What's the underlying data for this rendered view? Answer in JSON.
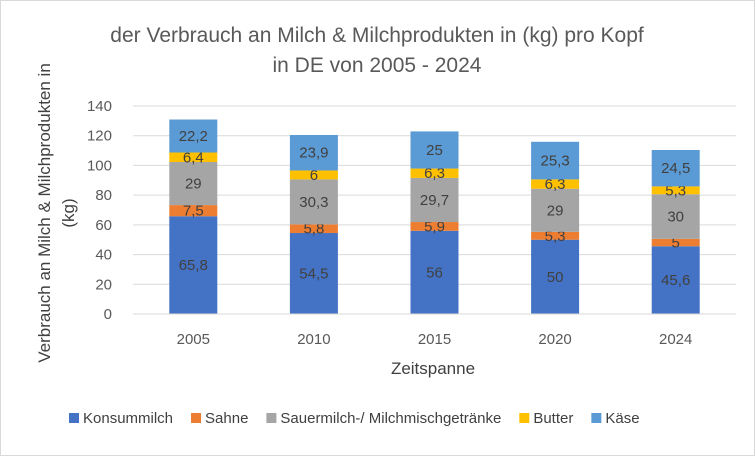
{
  "chart_data": {
    "type": "bar",
    "stacked": true,
    "title_line1": "der Verbrauch an Milch & Milchprodukten in (kg) pro Kopf",
    "title_line2": "in DE von 2005 - 2024",
    "xlabel": "Zeitspanne",
    "ylabel_line1": "Verbrauch an Milch & Milchprodukten in",
    "ylabel_line2": "(kg)",
    "categories": [
      "2005",
      "2010",
      "2015",
      "2020",
      "2024"
    ],
    "ylim": [
      0,
      140
    ],
    "yticks": [
      0,
      20,
      40,
      60,
      80,
      100,
      120,
      140
    ],
    "grid": true,
    "legend_position": "bottom",
    "series": [
      {
        "name": "Konsummilch",
        "color": "#4472C4",
        "values": [
          65.8,
          54.5,
          56,
          50,
          45.6
        ],
        "labels": [
          "65,8",
          "54,5",
          "56",
          "50",
          "45,6"
        ]
      },
      {
        "name": "Sahne",
        "color": "#ED7D31",
        "values": [
          7.5,
          5.8,
          5.9,
          5.3,
          5
        ],
        "labels": [
          "7,5",
          "5,8",
          "5,9",
          "5,3",
          "5"
        ]
      },
      {
        "name": "Sauermilch-/ Milchmischgetränke",
        "color": "#A5A5A5",
        "values": [
          29,
          30.3,
          29.7,
          29,
          30
        ],
        "labels": [
          "29",
          "30,3",
          "29,7",
          "29",
          "30"
        ]
      },
      {
        "name": "Butter",
        "color": "#FFC000",
        "values": [
          6.4,
          6,
          6.3,
          6.3,
          5.3
        ],
        "labels": [
          "6,4",
          "6",
          "6,3",
          "6,3",
          "5,3"
        ]
      },
      {
        "name": "Käse",
        "color": "#5B9BD5",
        "values": [
          22.2,
          23.9,
          25,
          25.3,
          24.5
        ],
        "labels": [
          "22,2",
          "23,9",
          "25",
          "25,3",
          "24,5"
        ]
      }
    ]
  }
}
